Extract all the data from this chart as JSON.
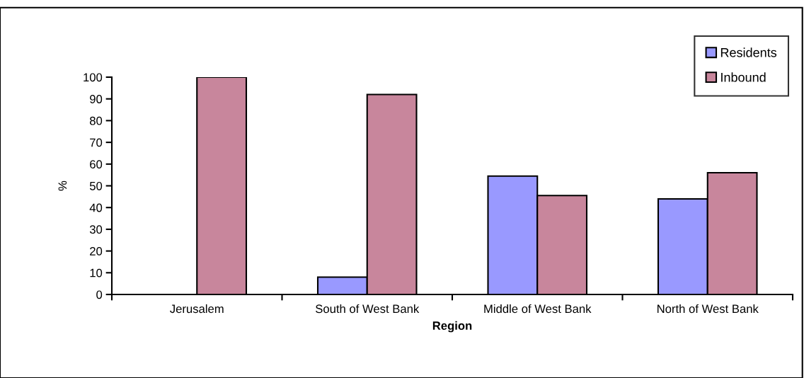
{
  "chart_data": {
    "type": "bar",
    "xlabel": "Region",
    "ylabel": "%",
    "categories": [
      "Jerusalem",
      "South of West Bank",
      "Middle of West Bank",
      "North of West Bank"
    ],
    "series": [
      {
        "name": "Residents",
        "color": "#9999ff",
        "values": [
          null,
          8,
          54.5,
          44
        ]
      },
      {
        "name": "Inbound",
        "color": "#c8869c",
        "values": [
          100,
          92,
          45.5,
          56
        ]
      }
    ],
    "ylim": [
      0,
      100
    ],
    "yticks": [
      0,
      10,
      20,
      30,
      40,
      50,
      60,
      70,
      80,
      90,
      100
    ],
    "grid": false,
    "legend": "top right"
  }
}
